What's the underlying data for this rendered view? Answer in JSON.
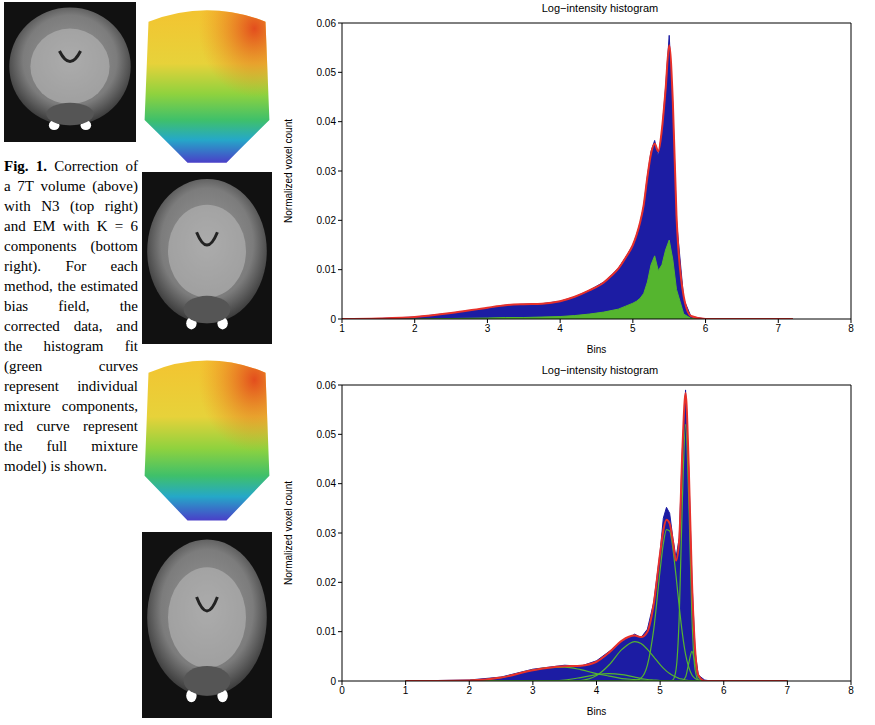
{
  "caption": {
    "label": "Fig. 1.",
    "text": "Correction of a 7T volume (above) with N3 (top right) and EM with K = 6 components (bottom right). For each method, the estimated bias field, the corrected data, and the histogram fit (green curves represent individual mixture components, red curve represent the full mixture model) is shown."
  },
  "chart_data": [
    {
      "type": "histogram",
      "title": "Log−intensity histogram",
      "x_label": "Bins",
      "y_label": "Normalized voxel count",
      "x": [
        1,
        1.5,
        2,
        2.5,
        3,
        3.25,
        3.5,
        3.75,
        4,
        4.2,
        4.4,
        4.6,
        4.7,
        4.8,
        4.9,
        5.0,
        5.05,
        5.1,
        5.15,
        5.2,
        5.25,
        5.3,
        5.35,
        5.4,
        5.45,
        5.5,
        5.55,
        5.6,
        5.7,
        5.8,
        6,
        6.5,
        7.2
      ],
      "series": [
        {
          "type": "area",
          "color": "#1c1ca3",
          "values": [
            0,
            0.0001,
            0.0004,
            0.0012,
            0.0022,
            0.0028,
            0.003,
            0.0031,
            0.0036,
            0.0045,
            0.0058,
            0.0075,
            0.0088,
            0.0103,
            0.0125,
            0.015,
            0.017,
            0.0195,
            0.023,
            0.029,
            0.034,
            0.0362,
            0.033,
            0.038,
            0.047,
            0.0575,
            0.043,
            0.02,
            0.004,
            0.0005,
            0,
            0,
            0
          ]
        },
        {
          "type": "area",
          "color": "#55b52f",
          "values": [
            0,
            0,
            0,
            0.0001,
            0.0002,
            0.0003,
            0.0003,
            0.0004,
            0.0005,
            0.0007,
            0.001,
            0.0014,
            0.0017,
            0.002,
            0.0026,
            0.0032,
            0.0036,
            0.0042,
            0.0052,
            0.0075,
            0.011,
            0.0128,
            0.0098,
            0.011,
            0.014,
            0.016,
            0.012,
            0.006,
            0.001,
            0.0001,
            0,
            0,
            0
          ]
        },
        {
          "type": "line",
          "color": "#e8312a",
          "values": [
            0,
            0.0001,
            0.0004,
            0.0012,
            0.0023,
            0.0028,
            0.003,
            0.0031,
            0.0036,
            0.0045,
            0.0058,
            0.0074,
            0.0087,
            0.0102,
            0.0124,
            0.015,
            0.017,
            0.0196,
            0.0232,
            0.0288,
            0.0335,
            0.0355,
            0.034,
            0.0385,
            0.0465,
            0.0555,
            0.044,
            0.021,
            0.0045,
            0.0006,
            0,
            0,
            0
          ]
        }
      ],
      "xlim": [
        1,
        8
      ],
      "xticks": [
        1,
        2,
        3,
        4,
        5,
        6,
        7,
        8
      ],
      "ylim": [
        0,
        0.06
      ],
      "yticks": [
        0,
        0.01,
        0.02,
        0.03,
        0.04,
        0.05,
        0.06
      ]
    },
    {
      "type": "histogram",
      "title": "Log−intensity histogram",
      "x_label": "Bins",
      "y_label": "Normalized voxel count",
      "x": [
        1,
        1.5,
        2,
        2.5,
        3,
        3.25,
        3.5,
        3.75,
        4,
        4.2,
        4.4,
        4.6,
        4.7,
        4.8,
        4.9,
        5.0,
        5.05,
        5.1,
        5.15,
        5.2,
        5.25,
        5.3,
        5.35,
        5.4,
        5.45,
        5.5,
        5.55,
        5.6,
        5.7,
        5.8,
        6,
        6.5,
        7
      ],
      "series": [
        {
          "type": "area",
          "color": "#1c1ca3",
          "values": [
            0,
            0.0001,
            0.0002,
            0.0008,
            0.0024,
            0.0028,
            0.0032,
            0.003,
            0.0041,
            0.006,
            0.008,
            0.0095,
            0.0088,
            0.0105,
            0.016,
            0.0262,
            0.033,
            0.0352,
            0.034,
            0.029,
            0.025,
            0.029,
            0.047,
            0.059,
            0.043,
            0.0205,
            0.006,
            0.0012,
            0.0002,
            0,
            0,
            0,
            0
          ]
        },
        {
          "type": "line",
          "color": "#55b52f",
          "values": [
            0,
            0,
            0.0001,
            0.0007,
            0.0022,
            0.0027,
            0.0028,
            0.0023,
            0.0015,
            0.001,
            0.0005,
            0.0003,
            0.0002,
            0.0001,
            0.0001,
            0,
            0,
            0,
            0,
            0,
            0,
            0,
            0,
            0,
            0,
            0,
            0,
            0,
            0,
            0,
            0,
            0,
            0
          ]
        },
        {
          "type": "line",
          "color": "#55b52f",
          "values": [
            0,
            0,
            0,
            0,
            0,
            0,
            0,
            0.0001,
            0.0011,
            0.0033,
            0.0064,
            0.008,
            0.0076,
            0.0064,
            0.0049,
            0.0033,
            0.0026,
            0.002,
            0.0015,
            0.0011,
            0.0008,
            0.0005,
            0.0004,
            0.0002,
            0.0001,
            0.0001,
            0,
            0,
            0,
            0,
            0,
            0,
            0
          ]
        },
        {
          "type": "line",
          "color": "#55b52f",
          "values": [
            0,
            0,
            0,
            0,
            0,
            0,
            0,
            0,
            0,
            0,
            0,
            0.0001,
            0.0006,
            0.0032,
            0.0105,
            0.0225,
            0.0278,
            0.0307,
            0.0304,
            0.0269,
            0.0213,
            0.0151,
            0.0096,
            0.0054,
            0.0028,
            0.0012,
            0.0005,
            0.0002,
            0,
            0,
            0,
            0,
            0
          ]
        },
        {
          "type": "line",
          "color": "#55b52f",
          "values": [
            0,
            0,
            0,
            0,
            0,
            0,
            0,
            0,
            0,
            0,
            0,
            0,
            0,
            0,
            0,
            0,
            0,
            0,
            0,
            0.0002,
            0.0023,
            0.013,
            0.0368,
            0.052,
            0.0368,
            0.013,
            0.0023,
            0.0002,
            0,
            0,
            0,
            0,
            0
          ]
        },
        {
          "type": "line",
          "color": "#55b52f",
          "values": [
            0,
            0,
            0,
            0,
            0,
            0,
            0,
            0,
            0,
            0,
            0,
            0,
            0,
            0,
            0,
            0,
            0,
            0,
            0,
            0,
            0,
            0,
            0.0001,
            0.0008,
            0.0036,
            0.006,
            0.0036,
            0.0008,
            0,
            0,
            0,
            0,
            0
          ]
        },
        {
          "type": "line",
          "color": "#55b52f",
          "values": [
            0,
            0,
            0,
            0,
            0,
            0,
            0.0002,
            0.0007,
            0.0013,
            0.0015,
            0.0013,
            0.0008,
            0.0005,
            0.0003,
            0.0002,
            0.0001,
            0.0001,
            0,
            0,
            0,
            0,
            0,
            0,
            0,
            0,
            0,
            0,
            0,
            0,
            0,
            0,
            0,
            0
          ]
        },
        {
          "type": "line",
          "color": "#e8312a",
          "values": [
            0,
            0,
            0.0001,
            0.0007,
            0.0022,
            0.0027,
            0.003,
            0.0031,
            0.0039,
            0.0058,
            0.0082,
            0.0092,
            0.0089,
            0.01,
            0.0157,
            0.0259,
            0.0305,
            0.0327,
            0.0319,
            0.0284,
            0.0244,
            0.0286,
            0.0469,
            0.0584,
            0.0433,
            0.0203,
            0.0064,
            0.0012,
            0,
            0,
            0,
            0,
            0
          ]
        }
      ],
      "xlim": [
        0,
        8
      ],
      "xticks": [
        0,
        1,
        2,
        3,
        4,
        5,
        6,
        7,
        8
      ],
      "ylim": [
        0,
        0.06
      ],
      "yticks": [
        0,
        0.01,
        0.02,
        0.03,
        0.04,
        0.05,
        0.06
      ]
    }
  ]
}
